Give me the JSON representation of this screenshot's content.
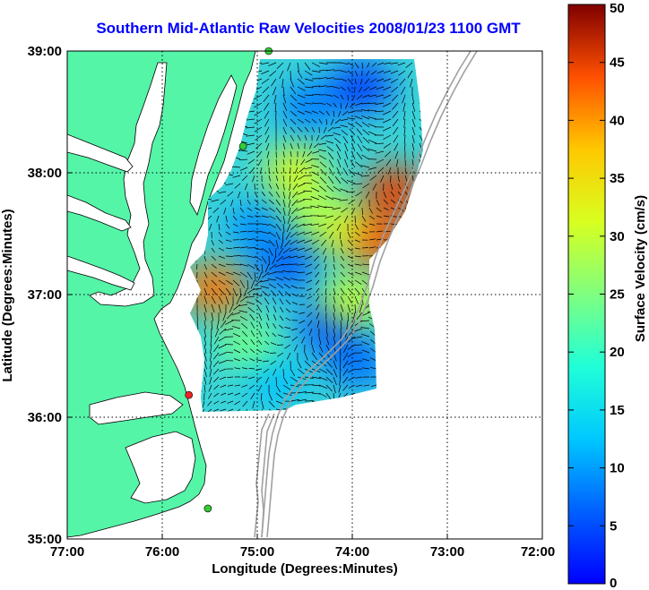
{
  "title": "Southern Mid-Atlantic Raw Velocities 2008/01/23 1100 GMT",
  "xlabel": "Longitude (Degrees:Minutes)",
  "ylabel": "Latitude (Degrees:Minutes)",
  "colorbar_label": "Surface Velocity (cm/s)",
  "x_ticks": [
    "77:00",
    "76:00",
    "75:00",
    "74:00",
    "73:00",
    "72:00"
  ],
  "y_ticks": [
    "39:00",
    "38:00",
    "37:00",
    "36:00",
    "35:00"
  ],
  "colorbar_ticks": [
    "50",
    "45",
    "40",
    "35",
    "30",
    "25",
    "20",
    "15",
    "10",
    "5",
    "0"
  ],
  "colors": {
    "land": "#55f5a8",
    "title": "#0000ff",
    "bathymetry": "#a0a0a0",
    "vector": "#000000",
    "site_active": "#33cc33",
    "site_inactive": "#ee2222"
  },
  "chart_data": {
    "type": "heatmap",
    "description_key": "surface current speed map with velocity vectors",
    "x_range_deg_west": [
      77,
      72
    ],
    "y_range_deg_north": [
      35,
      39
    ],
    "colorbar_range_cm_s": [
      0,
      50
    ],
    "colormap": "jet",
    "grid": true,
    "stations": [
      {
        "lon": -74.88,
        "lat": 39.0,
        "status": "active"
      },
      {
        "lon": -75.15,
        "lat": 38.22,
        "status": "active"
      },
      {
        "lon": -75.72,
        "lat": 36.18,
        "status": "inactive"
      },
      {
        "lon": -75.52,
        "lat": 35.25,
        "status": "active"
      }
    ],
    "speed_hotspots": [
      {
        "lon": -73.55,
        "lat": 37.85,
        "speed": 45
      },
      {
        "lon": -73.75,
        "lat": 37.45,
        "speed": 44
      },
      {
        "lon": -75.45,
        "lat": 37.05,
        "speed": 42
      },
      {
        "lon": -74.6,
        "lat": 38.0,
        "speed": 32
      },
      {
        "lon": -74.15,
        "lat": 37.55,
        "speed": 34
      },
      {
        "lon": -74.4,
        "lat": 37.7,
        "speed": 28
      },
      {
        "lon": -74.0,
        "lat": 36.95,
        "speed": 30
      },
      {
        "lon": -75.1,
        "lat": 36.6,
        "speed": 24
      }
    ],
    "speed_lowspots": [
      {
        "lon": -73.9,
        "lat": 38.7,
        "speed": 4
      },
      {
        "lon": -74.45,
        "lat": 38.55,
        "speed": 8
      },
      {
        "lon": -74.7,
        "lat": 37.25,
        "speed": 6
      },
      {
        "lon": -74.25,
        "lat": 36.75,
        "speed": 5
      },
      {
        "lon": -75.0,
        "lat": 37.55,
        "speed": 9
      },
      {
        "lon": -73.95,
        "lat": 36.45,
        "speed": 7
      },
      {
        "lon": -74.8,
        "lat": 36.3,
        "speed": 12
      }
    ]
  }
}
